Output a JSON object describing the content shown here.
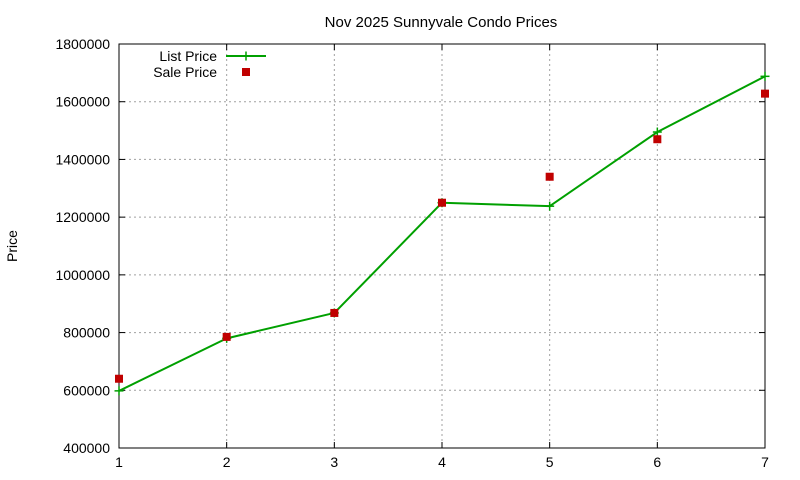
{
  "chart_data": {
    "type": "line",
    "title": "Nov 2025 Sunnyvale Condo Prices",
    "xlabel": "",
    "ylabel": "Price",
    "xlim": [
      1,
      7
    ],
    "ylim": [
      400000,
      1800000
    ],
    "x_ticks": [
      "1",
      "2",
      "3",
      "4",
      "5",
      "6",
      "7"
    ],
    "y_ticks": [
      "400000",
      "600000",
      "800000",
      "1000000",
      "1200000",
      "1400000",
      "1600000",
      "1800000"
    ],
    "grid": true,
    "legend_position": "top-left",
    "x": [
      1,
      2,
      3,
      4,
      5,
      6,
      7
    ],
    "series": [
      {
        "name": "List Price",
        "style": "line-with-plus-markers",
        "color": "#00a000",
        "values": [
          598000,
          780000,
          868000,
          1250000,
          1238000,
          1495000,
          1688000
        ]
      },
      {
        "name": "Sale Price",
        "style": "square-markers",
        "color": "#c00000",
        "values": [
          640000,
          785000,
          868000,
          1250000,
          1340000,
          1470000,
          1628000
        ]
      }
    ]
  }
}
